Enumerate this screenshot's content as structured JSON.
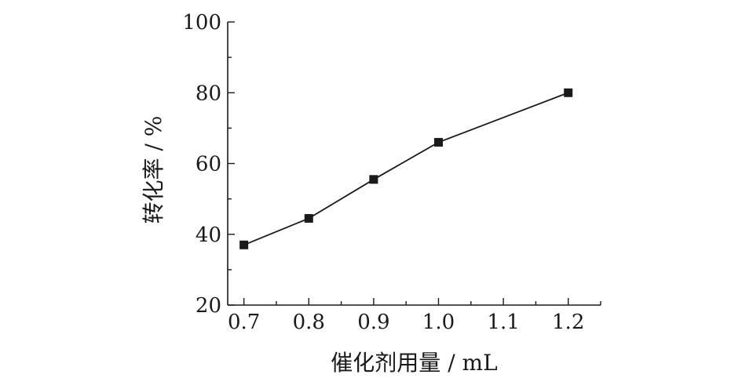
{
  "chart_data": {
    "type": "line",
    "title": "",
    "xlabel": "催化剂用量 / mL",
    "ylabel": "转化率 / %",
    "xlim": [
      0.675,
      1.25
    ],
    "ylim": [
      20,
      100
    ],
    "x_ticks": [
      0.7,
      0.8,
      0.9,
      1.0,
      1.1,
      1.2
    ],
    "x_tick_labels": [
      "0.7",
      "0.8",
      "0.9",
      "1.0",
      "1.1",
      "1.2"
    ],
    "y_ticks": [
      20,
      40,
      60,
      80,
      100
    ],
    "y_tick_labels": [
      "20",
      "40",
      "60",
      "80",
      "100"
    ],
    "grid": false,
    "series": [
      {
        "x": [
          0.7,
          0.8,
          0.9,
          1.0,
          1.2
        ],
        "y": [
          37,
          44.5,
          55.5,
          66,
          80
        ],
        "marker": "square",
        "color": "#1a1a1a"
      }
    ]
  }
}
